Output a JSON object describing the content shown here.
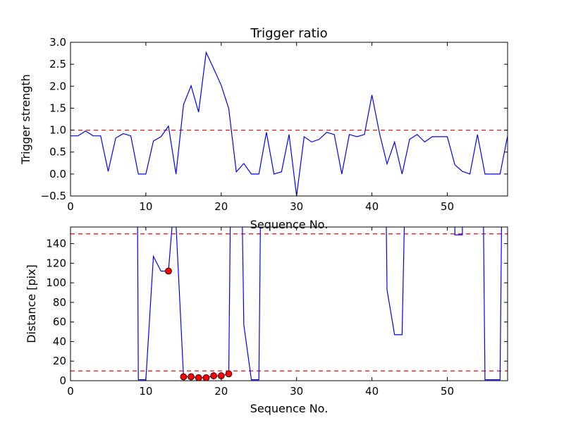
{
  "chart_data": [
    {
      "type": "line",
      "title": "Trigger ratio",
      "xlabel": "Sequence No.",
      "ylabel": "Trigger strength",
      "xlim": [
        0,
        58
      ],
      "ylim": [
        -0.5,
        3.0
      ],
      "xticks": [
        "0",
        "10",
        "20",
        "30",
        "40",
        "50"
      ],
      "yticks": [
        "−0.5",
        "0.0",
        "0.5",
        "1.0",
        "1.5",
        "2.0",
        "2.5",
        "3.0"
      ],
      "grid": false,
      "threshold_lines": [
        1.0
      ],
      "series": [
        {
          "color": "#0000ff",
          "x": [
            0,
            1,
            2,
            3,
            4,
            5,
            6,
            7,
            8,
            9,
            10,
            11,
            12,
            13,
            14,
            15,
            16,
            17,
            18,
            19,
            20,
            21,
            22,
            23,
            24,
            25,
            26,
            27,
            28,
            29,
            30,
            31,
            32,
            33,
            34,
            35,
            36,
            37,
            38,
            39,
            40,
            41,
            42,
            43,
            44,
            45,
            46,
            47,
            48,
            49,
            50,
            51,
            52,
            53,
            54,
            55,
            56,
            57,
            58
          ],
          "y": [
            0.87,
            0.87,
            0.98,
            0.87,
            0.87,
            0.06,
            0.82,
            0.92,
            0.87,
            0.0,
            0.0,
            0.75,
            0.85,
            1.09,
            0.0,
            1.58,
            2.01,
            1.41,
            2.77,
            2.4,
            2.02,
            1.49,
            0.05,
            0.24,
            0.0,
            0.0,
            0.95,
            0.0,
            0.05,
            0.9,
            -0.5,
            0.85,
            0.73,
            0.79,
            0.95,
            0.9,
            0.0,
            0.9,
            0.85,
            0.9,
            1.8,
            0.93,
            0.23,
            0.73,
            0.0,
            0.79,
            0.9,
            0.73,
            0.85,
            0.85,
            0.85,
            0.21,
            0.06,
            0.0,
            0.9,
            0.0,
            0.0,
            0.0,
            0.87
          ]
        }
      ],
      "threshold_color": "#ff0000"
    },
    {
      "type": "line",
      "title": "",
      "xlabel": "Sequence No.",
      "ylabel": "Distance [pix]",
      "xlim": [
        0,
        58
      ],
      "ylim": [
        0,
        157
      ],
      "xticks": [
        "0",
        "10",
        "20",
        "30",
        "40",
        "50"
      ],
      "yticks": [
        "0",
        "20",
        "40",
        "60",
        "80",
        "100",
        "120",
        "140"
      ],
      "grid": false,
      "threshold_lines": [
        10,
        150
      ],
      "threshold_color": "#ff0000",
      "series": [
        {
          "color": "#0000ff",
          "x": [
            8.9,
            9,
            10,
            11,
            12,
            13,
            13.5,
            14,
            15,
            16,
            17,
            18,
            19,
            20,
            21,
            21.2,
            21.4,
            22.8,
            23,
            24,
            25,
            25.2
          ],
          "y": [
            160,
            1,
            1,
            127,
            112,
            112,
            160,
            160,
            4,
            4,
            3,
            3,
            5,
            5,
            7,
            160,
            160,
            160,
            57,
            1,
            1,
            160
          ],
          "segments": [
            [
              0,
              7
            ],
            [
              7,
              15
            ],
            [
              15,
              16
            ],
            [
              17,
              22
            ]
          ]
        },
        {
          "color": "#0000ff",
          "x": [
            41.9,
            42,
            43,
            44,
            44.3
          ],
          "y": [
            160,
            93,
            47,
            47,
            160
          ]
        },
        {
          "color": "#0000ff",
          "x": [
            51,
            51,
            52,
            52
          ],
          "y": [
            160,
            149,
            149,
            160
          ]
        },
        {
          "color": "#0000ff",
          "x": [
            54.8,
            55,
            56,
            57,
            57.2
          ],
          "y": [
            160,
            1,
            1,
            1,
            160
          ]
        },
        {
          "color": "#ff0000",
          "marker": "circle",
          "x": [
            13,
            15,
            16,
            17,
            18,
            19,
            20,
            21
          ],
          "y": [
            112,
            4,
            4,
            3,
            3,
            5,
            5,
            7
          ]
        }
      ]
    }
  ]
}
